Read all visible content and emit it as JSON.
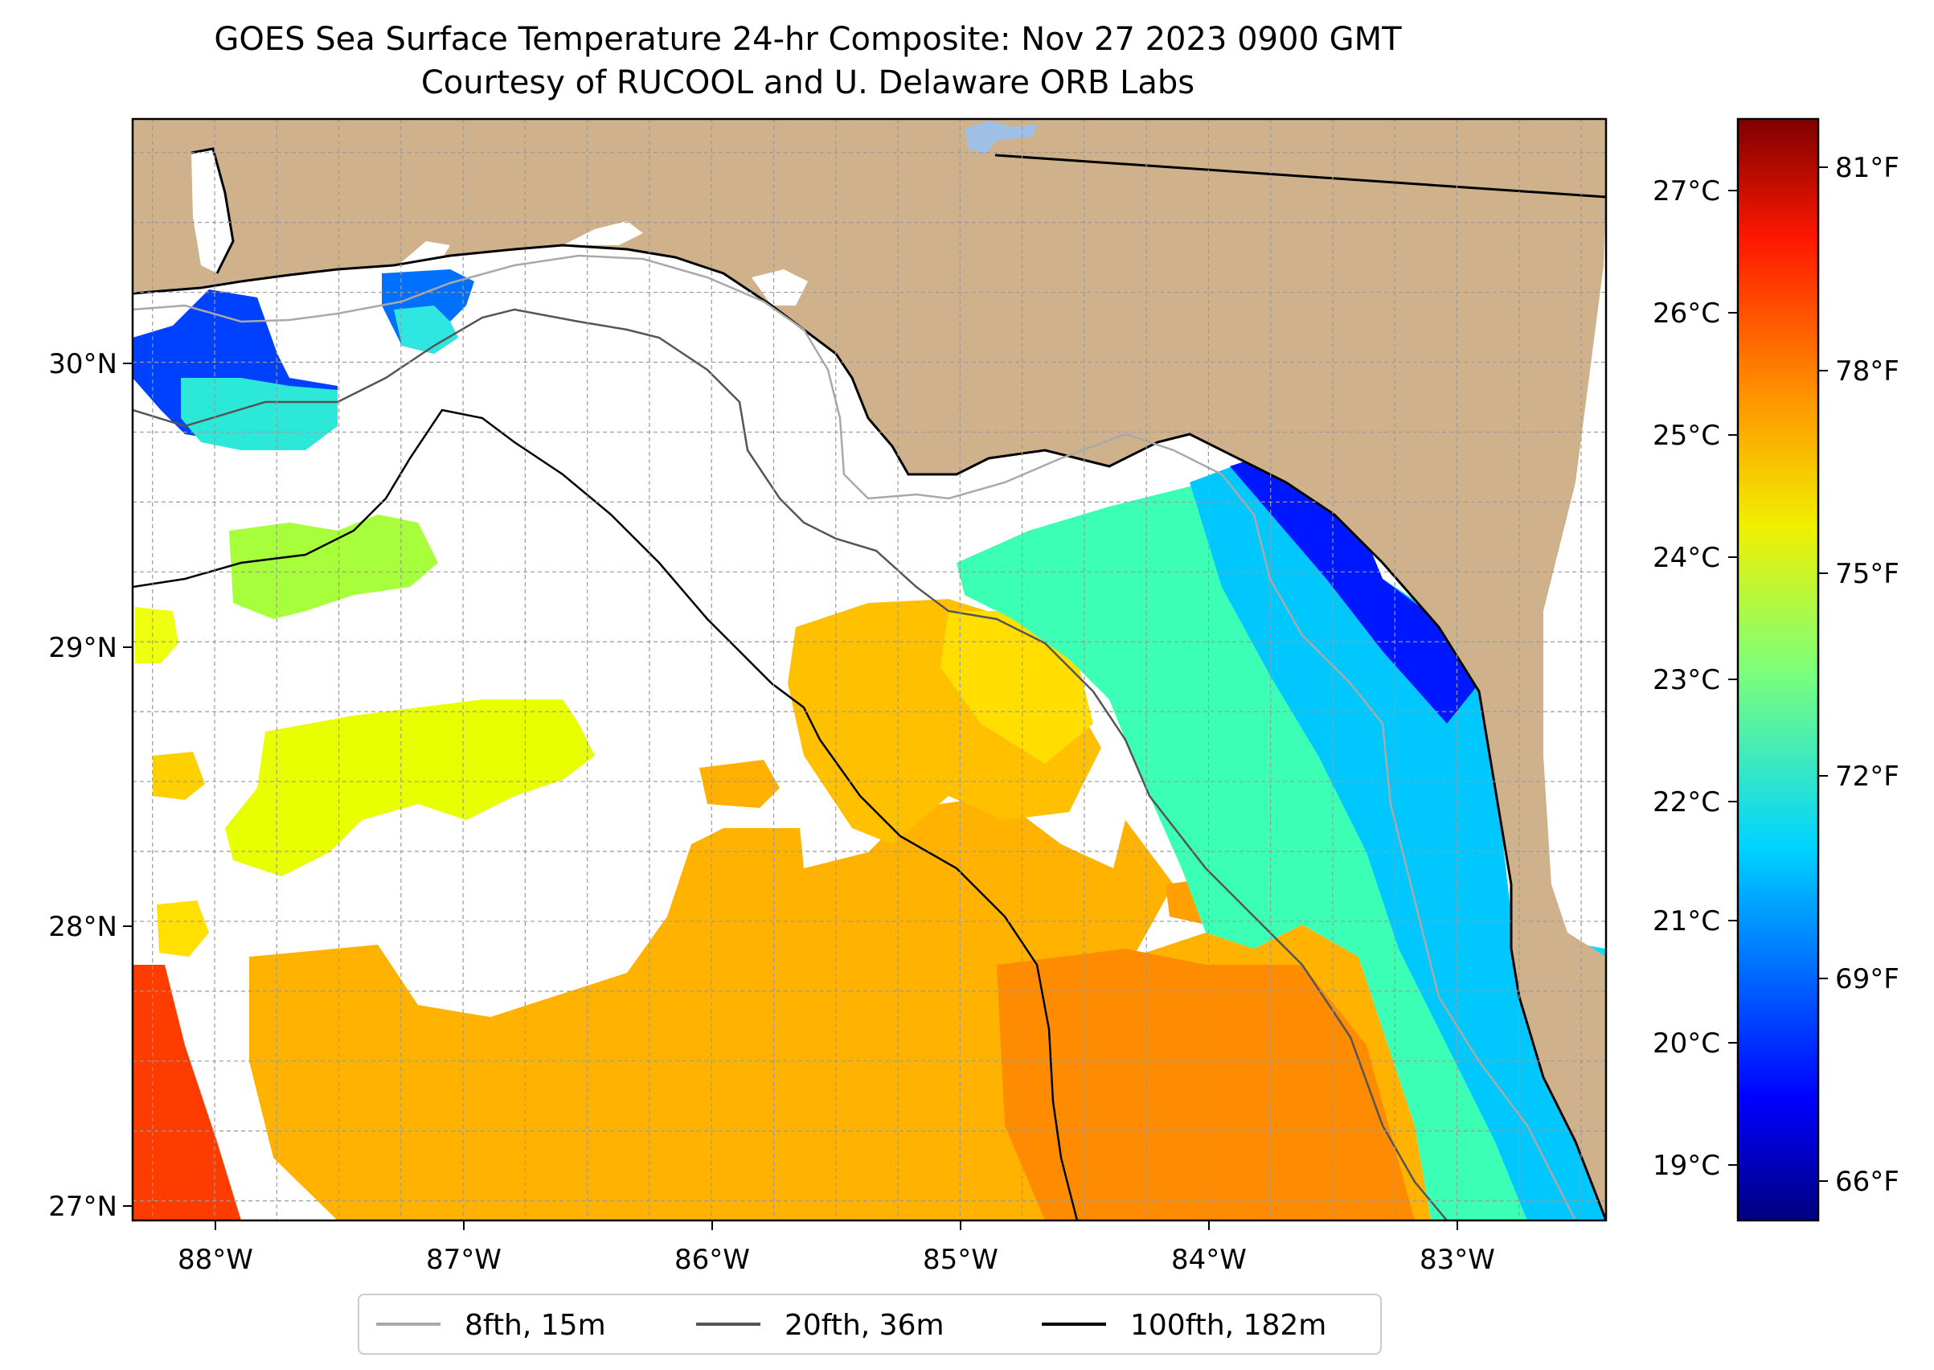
{
  "title": {
    "line1": "GOES Sea Surface Temperature 24-hr Composite: Nov 27 2023 0900 GMT",
    "line2": "Courtesy of RUCOOL and U. Delaware ORB Labs"
  },
  "map": {
    "lon_range": [
      -88.33,
      -82.4
    ],
    "lat_range": [
      26.93,
      30.87
    ],
    "lon_ticks": [
      "88°W",
      "87°W",
      "86°W",
      "85°W",
      "84°W",
      "83°W"
    ],
    "lat_ticks": [
      "27°N",
      "28°N",
      "29°N",
      "30°N"
    ],
    "gridlines": "dashed",
    "land_color": "#cfb28c",
    "ocean_no_data_color": "#ffffff",
    "coastline_color": "#000000",
    "lake_color": "#9fbfe6"
  },
  "legend": {
    "placement": "bottom-center",
    "items": [
      {
        "label": "8fth, 15m",
        "color": "#a9a9a9"
      },
      {
        "label": "20fth, 36m",
        "color": "#555555"
      },
      {
        "label": "100fth, 182m",
        "color": "#000000"
      }
    ]
  },
  "colorbar": {
    "colormap": "jet",
    "range_celsius": [
      18.6,
      27.6
    ],
    "celsius_ticks": [
      "19°C",
      "20°C",
      "21°C",
      "22°C",
      "23°C",
      "24°C",
      "25°C",
      "26°C",
      "27°C"
    ],
    "fahrenheit_ticks": [
      "66°F",
      "69°F",
      "72°F",
      "75°F",
      "78°F",
      "81°F"
    ]
  },
  "sst_summary": {
    "colder_nearshore_celsius_min": 19.5,
    "warmer_offshore_celsius_max": 27.0
  }
}
